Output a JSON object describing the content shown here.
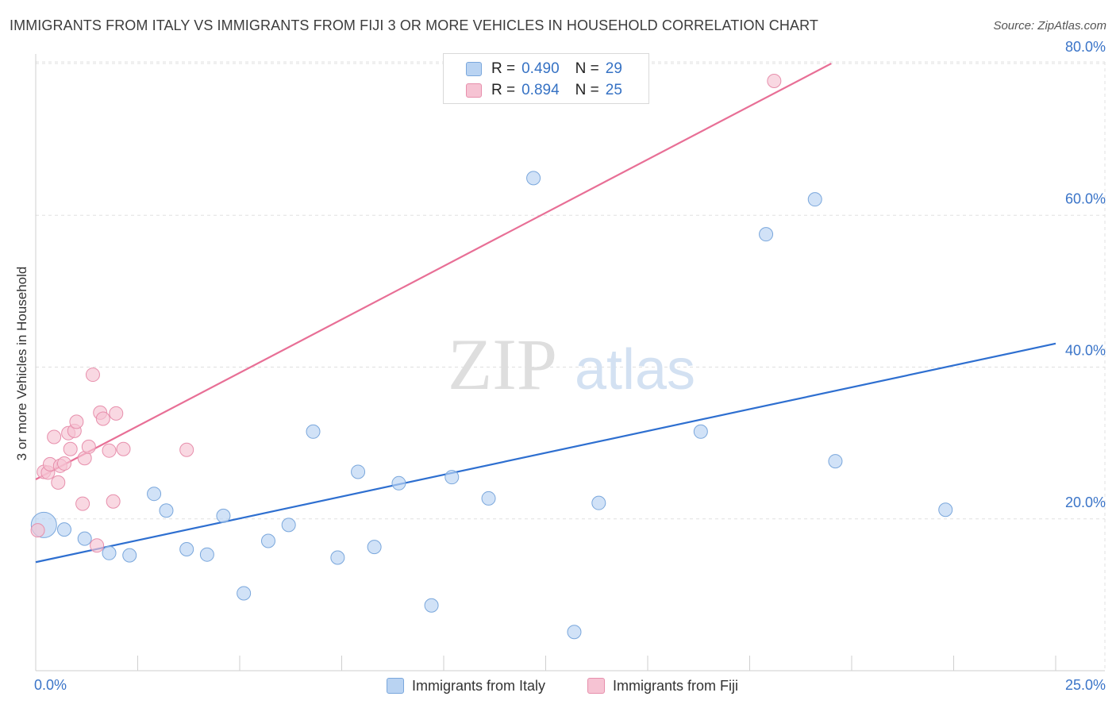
{
  "title": "IMMIGRANTS FROM ITALY VS IMMIGRANTS FROM FIJI 3 OR MORE VEHICLES IN HOUSEHOLD CORRELATION CHART",
  "source": "Source: ZipAtlas.com",
  "watermark": {
    "part1": "ZIP",
    "part2": "atlas"
  },
  "legend": {
    "italy": {
      "r_label": "R =",
      "r_value": "0.490",
      "n_label": "N =",
      "n_value": "29"
    },
    "fiji": {
      "r_label": "R =",
      "r_value": "0.894",
      "n_label": "N =",
      "n_value": "25"
    }
  },
  "bottom_legend": {
    "italy": "Immigrants from Italy",
    "fiji": "Immigrants from Fiji"
  },
  "colors": {
    "italy_fill": "#b9d3f2",
    "italy_stroke": "#7aa7dc",
    "italy_line": "#2e6fd0",
    "fiji_fill": "#f6c3d3",
    "fiji_stroke": "#e78fac",
    "fiji_line": "#e86f96",
    "tick_label": "#3a74c8",
    "grid": "#e0e0e0"
  },
  "chart_data": {
    "type": "scatter",
    "title": "IMMIGRANTS FROM ITALY VS IMMIGRANTS FROM FIJI 3 OR MORE VEHICLES IN HOUSEHOLD CORRELATION CHART",
    "xlabel": "",
    "ylabel": "3 or more Vehicles in Household",
    "xlim": [
      0,
      25
    ],
    "ylim": [
      0,
      82
    ],
    "x_tick_labels": [
      "0.0%",
      "25.0%"
    ],
    "y_ticks": [
      20,
      40,
      60,
      80
    ],
    "y_tick_labels": [
      "20.0%",
      "40.0%",
      "60.0%",
      "80.0%"
    ],
    "grid": true,
    "series": [
      {
        "name": "Immigrants from Italy",
        "points": [
          [
            0.2,
            19.2,
            "large"
          ],
          [
            0.7,
            18.6
          ],
          [
            1.2,
            17.4
          ],
          [
            1.8,
            15.5
          ],
          [
            2.3,
            15.2
          ],
          [
            2.9,
            23.3
          ],
          [
            3.2,
            21.1
          ],
          [
            3.7,
            16.0
          ],
          [
            4.2,
            15.3
          ],
          [
            4.6,
            20.4
          ],
          [
            5.1,
            10.2
          ],
          [
            5.7,
            17.1
          ],
          [
            6.2,
            19.2
          ],
          [
            6.8,
            31.5
          ],
          [
            7.4,
            14.9
          ],
          [
            7.9,
            26.2
          ],
          [
            8.3,
            16.3
          ],
          [
            8.9,
            24.7
          ],
          [
            9.7,
            8.6
          ],
          [
            10.2,
            25.5
          ],
          [
            11.1,
            22.7
          ],
          [
            12.2,
            64.9
          ],
          [
            13.2,
            5.1
          ],
          [
            13.8,
            22.1
          ],
          [
            16.3,
            31.5
          ],
          [
            17.9,
            57.5
          ],
          [
            19.1,
            62.1
          ],
          [
            19.6,
            27.6
          ],
          [
            22.3,
            21.2
          ]
        ],
        "trend": {
          "x": [
            0,
            25
          ],
          "y": [
            14.3,
            43.1
          ]
        }
      },
      {
        "name": "Immigrants from Fiji",
        "points": [
          [
            0.05,
            18.5
          ],
          [
            0.2,
            26.2
          ],
          [
            0.3,
            26.1
          ],
          [
            0.35,
            27.2
          ],
          [
            0.45,
            30.8
          ],
          [
            0.55,
            24.8
          ],
          [
            0.6,
            27.0
          ],
          [
            0.7,
            27.3
          ],
          [
            0.8,
            31.3
          ],
          [
            0.85,
            29.2
          ],
          [
            0.95,
            31.6
          ],
          [
            1.0,
            32.8
          ],
          [
            1.15,
            22.0
          ],
          [
            1.2,
            28.0
          ],
          [
            1.3,
            29.5
          ],
          [
            1.4,
            39.0
          ],
          [
            1.5,
            16.5
          ],
          [
            1.58,
            34.0
          ],
          [
            1.65,
            33.2
          ],
          [
            1.8,
            29.0
          ],
          [
            1.9,
            22.3
          ],
          [
            1.97,
            33.9
          ],
          [
            2.15,
            29.2
          ],
          [
            3.7,
            29.1
          ],
          [
            18.1,
            77.7
          ]
        ],
        "trend": {
          "x": [
            0,
            19.5
          ],
          "y": [
            25.2,
            80.0
          ]
        }
      }
    ]
  }
}
